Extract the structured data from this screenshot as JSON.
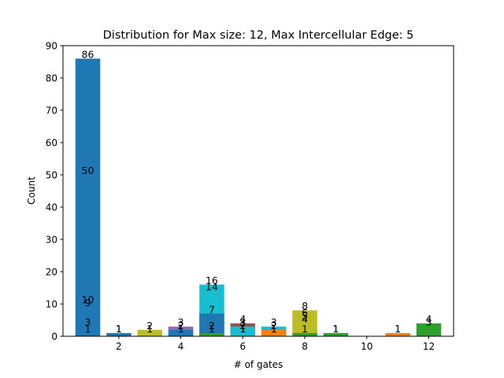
{
  "chart_data": {
    "type": "bar",
    "title": "Distribution for Max size: 12, Max Intercellular Edge: 5",
    "xlabel": "# of gates",
    "ylabel": "Count",
    "xlim": [
      0.2,
      12.8
    ],
    "ylim": [
      0,
      90
    ],
    "xticks": [
      2,
      4,
      6,
      8,
      10,
      12
    ],
    "yticks": [
      0,
      10,
      20,
      30,
      40,
      50,
      60,
      70,
      80,
      90
    ],
    "grid": false,
    "bars": [
      {
        "x": 1,
        "value": 86,
        "color": "#1f77b4"
      },
      {
        "x": 2,
        "value": 1,
        "color": "#1f77b4"
      },
      {
        "x": 3,
        "value": 2,
        "color": "#bcbd22"
      },
      {
        "x": 4,
        "value": 3,
        "color": "#9467bd"
      },
      {
        "x": 4,
        "value": 2,
        "color": "#1f77b4"
      },
      {
        "x": 5,
        "value": 16,
        "color": "#17becf"
      },
      {
        "x": 5,
        "value": 7,
        "color": "#1f77b4"
      },
      {
        "x": 5,
        "value": 1,
        "color": "#2ca02c"
      },
      {
        "x": 6,
        "value": 4,
        "color": "#8c564b"
      },
      {
        "x": 6,
        "value": 3,
        "color": "#17becf"
      },
      {
        "x": 7,
        "value": 3,
        "color": "#17becf"
      },
      {
        "x": 7,
        "value": 2,
        "color": "#ff7f0e"
      },
      {
        "x": 8,
        "value": 8,
        "color": "#bcbd22"
      },
      {
        "x": 8,
        "value": 1,
        "color": "#2ca02c"
      },
      {
        "x": 9,
        "value": 1,
        "color": "#2ca02c"
      },
      {
        "x": 11,
        "value": 1,
        "color": "#ff7f0e"
      },
      {
        "x": 12,
        "value": 4,
        "color": "#2ca02c"
      }
    ],
    "labels": [
      {
        "x": 1,
        "y": 86,
        "text": "86"
      },
      {
        "x": 1,
        "y": 50,
        "text": "50"
      },
      {
        "x": 1,
        "y": 10,
        "text": "10"
      },
      {
        "x": 1,
        "y": 9,
        "text": "9"
      },
      {
        "x": 1,
        "y": 3,
        "text": "3"
      },
      {
        "x": 1,
        "y": 1,
        "text": "1"
      },
      {
        "x": 2,
        "y": 1,
        "text": "1"
      },
      {
        "x": 2,
        "y": 1,
        "text": "1"
      },
      {
        "x": 3,
        "y": 2,
        "text": "2"
      },
      {
        "x": 3,
        "y": 1,
        "text": "1"
      },
      {
        "x": 4,
        "y": 3,
        "text": "3"
      },
      {
        "x": 4,
        "y": 2,
        "text": "2"
      },
      {
        "x": 4,
        "y": 1,
        "text": "1"
      },
      {
        "x": 5,
        "y": 16,
        "text": "16"
      },
      {
        "x": 5,
        "y": 14,
        "text": "14"
      },
      {
        "x": 5,
        "y": 7,
        "text": "7"
      },
      {
        "x": 5,
        "y": 2,
        "text": "2"
      },
      {
        "x": 5,
        "y": 1,
        "text": "1"
      },
      {
        "x": 6,
        "y": 4,
        "text": "4"
      },
      {
        "x": 6,
        "y": 3,
        "text": "3"
      },
      {
        "x": 6,
        "y": 2,
        "text": "2"
      },
      {
        "x": 6,
        "y": 1,
        "text": "1"
      },
      {
        "x": 7,
        "y": 3,
        "text": "3"
      },
      {
        "x": 7,
        "y": 2,
        "text": "2"
      },
      {
        "x": 7,
        "y": 1,
        "text": "1"
      },
      {
        "x": 8,
        "y": 8,
        "text": "8"
      },
      {
        "x": 8,
        "y": 6,
        "text": "6"
      },
      {
        "x": 8,
        "y": 5,
        "text": "5"
      },
      {
        "x": 8,
        "y": 4,
        "text": "4"
      },
      {
        "x": 8,
        "y": 1,
        "text": "1"
      },
      {
        "x": 9,
        "y": 1,
        "text": "1"
      },
      {
        "x": 9,
        "y": 1,
        "text": "1"
      },
      {
        "x": 11,
        "y": 1,
        "text": "1"
      },
      {
        "x": 12,
        "y": 4,
        "text": "4"
      },
      {
        "x": 12,
        "y": 3,
        "text": "3"
      }
    ]
  }
}
